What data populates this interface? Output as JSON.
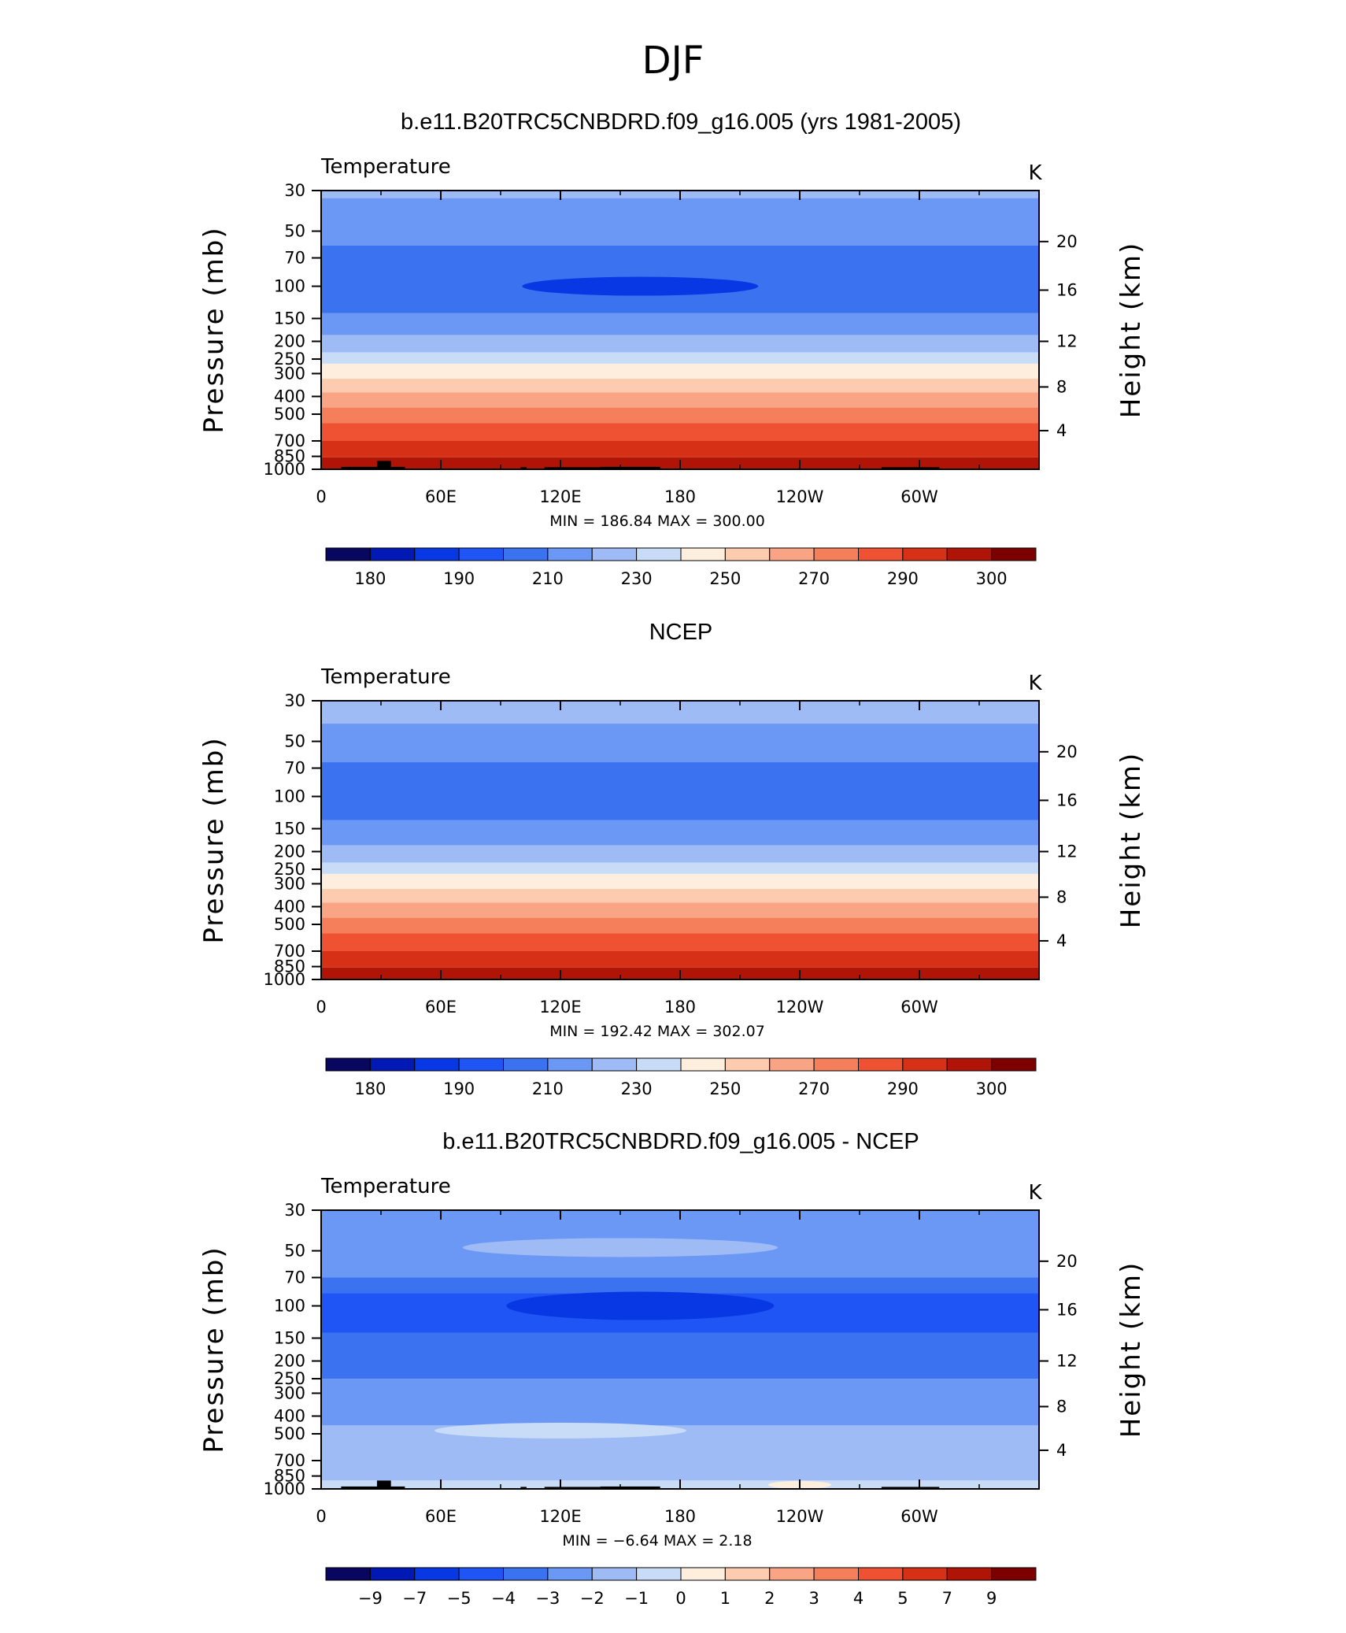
{
  "figure": {
    "title": "DJF"
  },
  "chart_data": [
    {
      "type": "heatmap",
      "title": "b.e11.B20TRC5CNBDRD.f09_g16.005 (yrs 1981-2005)",
      "subtitle_left": "Temperature",
      "units": "K",
      "ylabel": "Pressure (mb)",
      "y2label": "Height (km)",
      "x_ticks": [
        "0",
        "60E",
        "120E",
        "180",
        "120W",
        "60W"
      ],
      "y_ticks": [
        "30",
        "50",
        "70",
        "100",
        "150",
        "200",
        "250",
        "300",
        "400",
        "500",
        "700",
        "850",
        "1000"
      ],
      "y2_ticks": [
        "4",
        "8",
        "12",
        "16",
        "20"
      ],
      "ylim": [
        1000,
        30
      ],
      "xlim": [
        0,
        360
      ],
      "stats": "MIN = 186.84   MAX = 300.00",
      "min": 186.84,
      "max": 300.0,
      "colorbar_labels": [
        "180",
        "190",
        "210",
        "230",
        "250",
        "270",
        "290",
        "300"
      ],
      "levels_by_pressure": [
        {
          "p_top": 30,
          "p_bottom": 33,
          "value": 212
        },
        {
          "p_top": 33,
          "p_bottom": 60,
          "value": 203
        },
        {
          "p_top": 60,
          "p_bottom": 140,
          "value": 197
        },
        {
          "p_top": 140,
          "p_bottom": 185,
          "value": 203
        },
        {
          "p_top": 185,
          "p_bottom": 230,
          "value": 212
        },
        {
          "p_top": 230,
          "p_bottom": 265,
          "value": 222
        },
        {
          "p_top": 265,
          "p_bottom": 320,
          "value": 232
        },
        {
          "p_top": 320,
          "p_bottom": 380,
          "value": 246
        },
        {
          "p_top": 380,
          "p_bottom": 460,
          "value": 256
        },
        {
          "p_top": 460,
          "p_bottom": 560,
          "value": 266
        },
        {
          "p_top": 560,
          "p_bottom": 700,
          "value": 276
        },
        {
          "p_top": 700,
          "p_bottom": 860,
          "value": 283
        },
        {
          "p_top": 860,
          "p_bottom": 1000,
          "value": 292
        }
      ]
    },
    {
      "type": "heatmap",
      "title": "NCEP",
      "subtitle_left": "Temperature",
      "units": "K",
      "ylabel": "Pressure (mb)",
      "y2label": "Height (km)",
      "x_ticks": [
        "0",
        "60E",
        "120E",
        "180",
        "120W",
        "60W"
      ],
      "y_ticks": [
        "30",
        "50",
        "70",
        "100",
        "150",
        "200",
        "250",
        "300",
        "400",
        "500",
        "700",
        "850",
        "1000"
      ],
      "y2_ticks": [
        "4",
        "8",
        "12",
        "16",
        "20"
      ],
      "ylim": [
        1000,
        30
      ],
      "xlim": [
        0,
        360
      ],
      "stats": "MIN = 192.42   MAX = 302.07",
      "min": 192.42,
      "max": 302.07,
      "colorbar_labels": [
        "180",
        "190",
        "210",
        "230",
        "250",
        "270",
        "290",
        "300"
      ],
      "levels_by_pressure": [
        {
          "p_top": 30,
          "p_bottom": 40,
          "value": 212
        },
        {
          "p_top": 40,
          "p_bottom": 65,
          "value": 203
        },
        {
          "p_top": 65,
          "p_bottom": 135,
          "value": 197
        },
        {
          "p_top": 135,
          "p_bottom": 185,
          "value": 203
        },
        {
          "p_top": 185,
          "p_bottom": 230,
          "value": 212
        },
        {
          "p_top": 230,
          "p_bottom": 265,
          "value": 222
        },
        {
          "p_top": 265,
          "p_bottom": 320,
          "value": 232
        },
        {
          "p_top": 320,
          "p_bottom": 380,
          "value": 246
        },
        {
          "p_top": 380,
          "p_bottom": 460,
          "value": 256
        },
        {
          "p_top": 460,
          "p_bottom": 560,
          "value": 266
        },
        {
          "p_top": 560,
          "p_bottom": 700,
          "value": 276
        },
        {
          "p_top": 700,
          "p_bottom": 860,
          "value": 283
        },
        {
          "p_top": 860,
          "p_bottom": 1000,
          "value": 292
        }
      ]
    },
    {
      "type": "heatmap",
      "title": "b.e11.B20TRC5CNBDRD.f09_g16.005 - NCEP",
      "subtitle_left": "Temperature",
      "units": "K",
      "ylabel": "Pressure (mb)",
      "y2label": "Height (km)",
      "x_ticks": [
        "0",
        "60E",
        "120E",
        "180",
        "120W",
        "60W"
      ],
      "y_ticks": [
        "30",
        "50",
        "70",
        "100",
        "150",
        "200",
        "250",
        "300",
        "400",
        "500",
        "700",
        "850",
        "1000"
      ],
      "y2_ticks": [
        "4",
        "8",
        "12",
        "16",
        "20"
      ],
      "ylim": [
        1000,
        30
      ],
      "xlim": [
        0,
        360
      ],
      "stats": "MIN =   −6.64   MAX =     2.18",
      "min": -6.64,
      "max": 2.18,
      "colorbar_labels": [
        "−9",
        "−7",
        "−5",
        "−4",
        "−3",
        "−2",
        "−1",
        "0",
        "1",
        "2",
        "3",
        "4",
        "5",
        "7",
        "9"
      ],
      "levels_by_pressure": [
        {
          "p_top": 30,
          "p_bottom": 70,
          "value": -2.5
        },
        {
          "p_top": 70,
          "p_bottom": 85,
          "value": -3.5
        },
        {
          "p_top": 85,
          "p_bottom": 140,
          "value": -4.5
        },
        {
          "p_top": 140,
          "p_bottom": 250,
          "value": -3.5
        },
        {
          "p_top": 250,
          "p_bottom": 450,
          "value": -2.5
        },
        {
          "p_top": 450,
          "p_bottom": 900,
          "value": -1.5
        },
        {
          "p_top": 900,
          "p_bottom": 1000,
          "value": -0.5
        }
      ]
    }
  ],
  "colors": {
    "temp_palette": [
      "#08065e",
      "#0019b4",
      "#0838e4",
      "#1f54f5",
      "#3b72f0",
      "#6b97f5",
      "#9ebbf6",
      "#c8dcf8",
      "#fdeedd",
      "#fccbb0",
      "#f9a585",
      "#f57f5b",
      "#ee5232",
      "#d63016",
      "#b01406",
      "#7c0000"
    ],
    "diff_palette": [
      "#08065e",
      "#0019b4",
      "#0838e4",
      "#1f54f5",
      "#3b72f0",
      "#6b97f5",
      "#9ebbf6",
      "#c8dcf8",
      "#fdeedd",
      "#fccbb0",
      "#f9a585",
      "#f57f5b",
      "#ee5232",
      "#d63016",
      "#b01406",
      "#7c0000"
    ],
    "topo": "#000000"
  }
}
